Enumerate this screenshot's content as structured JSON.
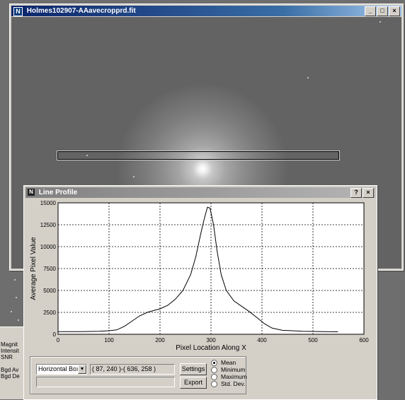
{
  "image_window": {
    "title": "Holmes102907-AAavecropprd.fit",
    "app_icon_glyph": "N",
    "minimize_glyph": "_",
    "maximize_glyph": "□",
    "close_glyph": "×"
  },
  "profile_window": {
    "title": "Line Profile",
    "help_glyph": "?",
    "close_glyph": "×"
  },
  "chart_data": {
    "type": "line",
    "xlabel": "Pixel Location Along X",
    "ylabel": "Average Pixel Value",
    "xlim": [
      0,
      600
    ],
    "ylim": [
      0,
      15000
    ],
    "xticks": [
      0,
      100,
      200,
      300,
      400,
      500,
      600
    ],
    "yticks": [
      0,
      2500,
      5000,
      7500,
      10000,
      12500,
      15000
    ],
    "grid": true,
    "series": [
      {
        "color": "#000000",
        "x": [
          0,
          40,
          80,
          100,
          115,
          130,
          145,
          160,
          175,
          190,
          200,
          215,
          230,
          245,
          260,
          270,
          280,
          287,
          293,
          298,
          305,
          312,
          320,
          330,
          345,
          360,
          375,
          390,
          405,
          420,
          440,
          460,
          480,
          500,
          520,
          549
        ],
        "y": [
          300,
          300,
          350,
          400,
          500,
          900,
          1500,
          2100,
          2500,
          2750,
          2900,
          3300,
          4000,
          5000,
          6800,
          8800,
          11500,
          13200,
          14500,
          14400,
          12500,
          9500,
          6800,
          5000,
          3800,
          3200,
          2600,
          1900,
          1200,
          700,
          450,
          400,
          350,
          320,
          300,
          280
        ]
      }
    ]
  },
  "controls": {
    "mode_select": "Horizontal Box",
    "coords": "( 87, 240 )-( 636, 258 )",
    "settings_label": "Settings",
    "export_label": "Export",
    "radio_options": [
      {
        "label": "Mean",
        "selected": true
      },
      {
        "label": "Minimum",
        "selected": false
      },
      {
        "label": "Maximum",
        "selected": false
      },
      {
        "label": "Std. Dev.",
        "selected": false
      }
    ]
  },
  "side_panel": {
    "labels": [
      "Magnit",
      "Intensit",
      "SNR",
      "Bgd Av",
      "Bgd De"
    ]
  },
  "icons": {
    "combo_arrow": "chevron-down-icon"
  }
}
